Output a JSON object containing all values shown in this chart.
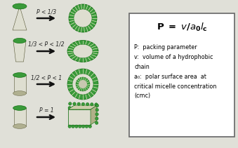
{
  "bg_color": "#e0e0d8",
  "green_head": "#3a9a3a",
  "cream_color": "#deded0",
  "arrow_color": "#111111",
  "labels": [
    "P < 1/3",
    "1/3 < P < 1/2",
    "1/2 < P < 1",
    "P = 1"
  ],
  "desc_lines": [
    "P:  packing parameter",
    "v:  volume of a hydrophobic",
    "chain",
    "a₀:  polar surface area  at",
    "critical micelle concentration",
    "(cmc)"
  ],
  "label_fontsize": 5.5,
  "desc_fontsize": 5.8,
  "fig_width": 3.39,
  "fig_height": 2.11
}
